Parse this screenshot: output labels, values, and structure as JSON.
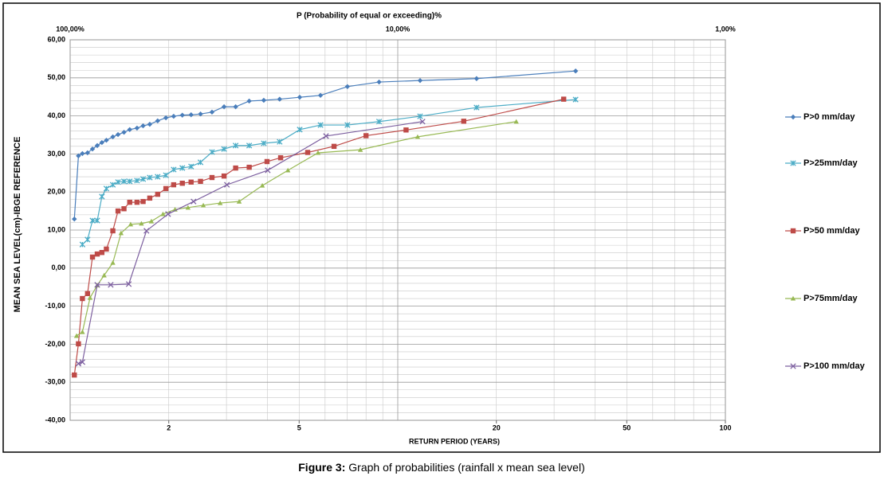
{
  "chart_data": {
    "type": "line",
    "title": "P (Probability of equal or exceeding)%",
    "xlabel": "RETURN PERIOD (YEARS)",
    "ylabel": "MEAN SEA LEVEL(cm)-IBGE REFERENCE",
    "xlog": true,
    "xlim": [
      1,
      100
    ],
    "xticks": [
      2,
      5,
      20,
      50,
      100
    ],
    "x2log": true,
    "x2lim": [
      100,
      1
    ],
    "x2ticks": [
      {
        "value": 100,
        "label": "100,00%"
      },
      {
        "value": 10,
        "label": "10,00%"
      },
      {
        "value": 1,
        "label": "1,00%"
      }
    ],
    "ylim": [
      -40,
      60
    ],
    "yticks": [
      {
        "value": -40,
        "label": "-40,00"
      },
      {
        "value": -30,
        "label": "-30,00"
      },
      {
        "value": -20,
        "label": "-20,00"
      },
      {
        "value": -10,
        "label": "-10,00"
      },
      {
        "value": 0,
        "label": "0,00"
      },
      {
        "value": 10,
        "label": "10,00"
      },
      {
        "value": 20,
        "label": "20,00"
      },
      {
        "value": 30,
        "label": "30,00"
      },
      {
        "value": 40,
        "label": "40,00"
      },
      {
        "value": 50,
        "label": "50,00"
      },
      {
        "value": 60,
        "label": "60,00"
      }
    ],
    "grid": true,
    "legend": "right",
    "series": [
      {
        "name": "P>0 mm/day",
        "color": "#4a7ebb",
        "marker": "diamond",
        "x": [
          1.03,
          1.06,
          1.09,
          1.13,
          1.17,
          1.21,
          1.25,
          1.29,
          1.35,
          1.4,
          1.46,
          1.52,
          1.6,
          1.67,
          1.75,
          1.85,
          1.96,
          2.07,
          2.2,
          2.34,
          2.5,
          2.71,
          2.95,
          3.2,
          3.52,
          3.9,
          4.36,
          5.02,
          5.81,
          7.02,
          8.77,
          11.7,
          17.4,
          34.9
        ],
        "values": [
          12.9,
          29.5,
          30.1,
          30.3,
          31.3,
          32.2,
          33.0,
          33.6,
          34.5,
          35.1,
          35.7,
          36.4,
          36.8,
          37.4,
          37.8,
          38.7,
          39.5,
          39.9,
          40.2,
          40.3,
          40.5,
          41.0,
          42.4,
          42.4,
          43.9,
          44.1,
          44.4,
          44.9,
          45.4,
          47.7,
          48.9,
          49.3,
          49.8,
          51.8
        ]
      },
      {
        "name": "P>25mm/day",
        "color": "#4bacc6",
        "marker": "star",
        "x": [
          1.09,
          1.13,
          1.17,
          1.21,
          1.25,
          1.29,
          1.35,
          1.4,
          1.46,
          1.52,
          1.6,
          1.67,
          1.75,
          1.85,
          1.96,
          2.07,
          2.2,
          2.34,
          2.5,
          2.71,
          2.95,
          3.2,
          3.52,
          3.9,
          4.36,
          5.02,
          5.81,
          7.02,
          8.77,
          11.7,
          17.4,
          34.9
        ],
        "values": [
          6.2,
          7.5,
          12.5,
          12.5,
          18.8,
          20.9,
          21.9,
          22.6,
          22.8,
          22.8,
          23.0,
          23.4,
          23.8,
          24.0,
          24.4,
          25.9,
          26.3,
          26.7,
          27.8,
          30.5,
          31.3,
          32.2,
          32.2,
          32.8,
          33.2,
          36.4,
          37.6,
          37.6,
          38.5,
          39.9,
          42.2,
          44.3
        ]
      },
      {
        "name": "P>50 mm/day",
        "color": "#be4b48",
        "marker": "square",
        "x": [
          1.03,
          1.06,
          1.09,
          1.13,
          1.17,
          1.21,
          1.25,
          1.29,
          1.35,
          1.4,
          1.46,
          1.52,
          1.6,
          1.67,
          1.75,
          1.85,
          1.96,
          2.07,
          2.2,
          2.34,
          2.5,
          2.71,
          2.95,
          3.2,
          3.52,
          3.99,
          4.39,
          5.31,
          6.39,
          8.0,
          10.6,
          15.9,
          32.1
        ],
        "values": [
          -28.1,
          -19.9,
          -8.0,
          -6.7,
          2.9,
          3.7,
          4.1,
          5.0,
          9.8,
          15.0,
          15.6,
          17.3,
          17.3,
          17.5,
          18.4,
          19.4,
          20.9,
          21.9,
          22.3,
          22.6,
          22.8,
          23.8,
          24.2,
          26.3,
          26.5,
          28.0,
          29.0,
          30.4,
          32.0,
          34.8,
          36.3,
          38.6,
          44.4
        ]
      },
      {
        "name": "P>75mm/day",
        "color": "#98b954",
        "marker": "triangle",
        "x": [
          1.046,
          1.09,
          1.15,
          1.21,
          1.27,
          1.35,
          1.43,
          1.53,
          1.65,
          1.77,
          1.92,
          2.09,
          2.29,
          2.55,
          2.87,
          3.28,
          3.86,
          4.62,
          5.71,
          7.69,
          11.5,
          23.0
        ],
        "values": [
          -17.8,
          -16.8,
          -7.8,
          -4.5,
          -1.9,
          1.4,
          9.2,
          11.5,
          11.7,
          12.3,
          14.2,
          15.4,
          15.9,
          16.5,
          17.1,
          17.5,
          21.7,
          25.7,
          30.3,
          31.1,
          34.5,
          38.5
        ]
      },
      {
        "name": "P>100 mm/day",
        "color": "#7d60a0",
        "marker": "cross",
        "x": [
          1.06,
          1.09,
          1.21,
          1.33,
          1.51,
          1.71,
          1.99,
          2.38,
          3.01,
          4.01,
          6.04,
          11.9
        ],
        "values": [
          -25.1,
          -24.7,
          -4.4,
          -4.4,
          -4.2,
          9.8,
          14.2,
          17.5,
          21.9,
          25.7,
          34.7,
          38.5
        ]
      }
    ]
  },
  "caption": {
    "label": "Figure 3:",
    "text": " Graph of probabilities (rainfall x mean sea level)"
  }
}
